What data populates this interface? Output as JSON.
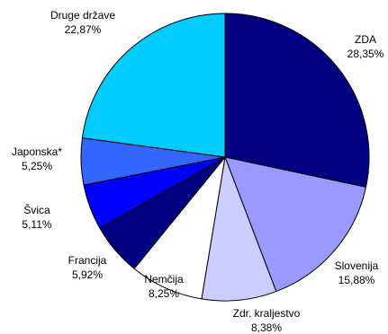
{
  "chart_data": {
    "type": "pie",
    "slices": [
      {
        "name": "ZDA",
        "value": 28.35,
        "label": "28,35%",
        "color": "#000080"
      },
      {
        "name": "Slovenija",
        "value": 15.88,
        "label": "15,88%",
        "color": "#9999FF"
      },
      {
        "name": "Zdr. kraljestvo",
        "value": 8.38,
        "label": "8,38%",
        "color": "#CCCCFF"
      },
      {
        "name": "Nemčija",
        "value": 8.25,
        "label": "8,25%",
        "color": "#FFFFFF"
      },
      {
        "name": "Francija",
        "value": 5.92,
        "label": "5,92%",
        "color": "#000080"
      },
      {
        "name": "Švica",
        "value": 5.11,
        "label": "5,11%",
        "color": "#0000FF"
      },
      {
        "name": "Japonska*",
        "value": 5.25,
        "label": "5,25%",
        "color": "#3366FF"
      },
      {
        "name": "Druge države",
        "value": 22.87,
        "label": "22,87%",
        "color": "#00CCFF"
      }
    ],
    "start": "12 o'clock",
    "direction": "clockwise",
    "legend": "none"
  }
}
